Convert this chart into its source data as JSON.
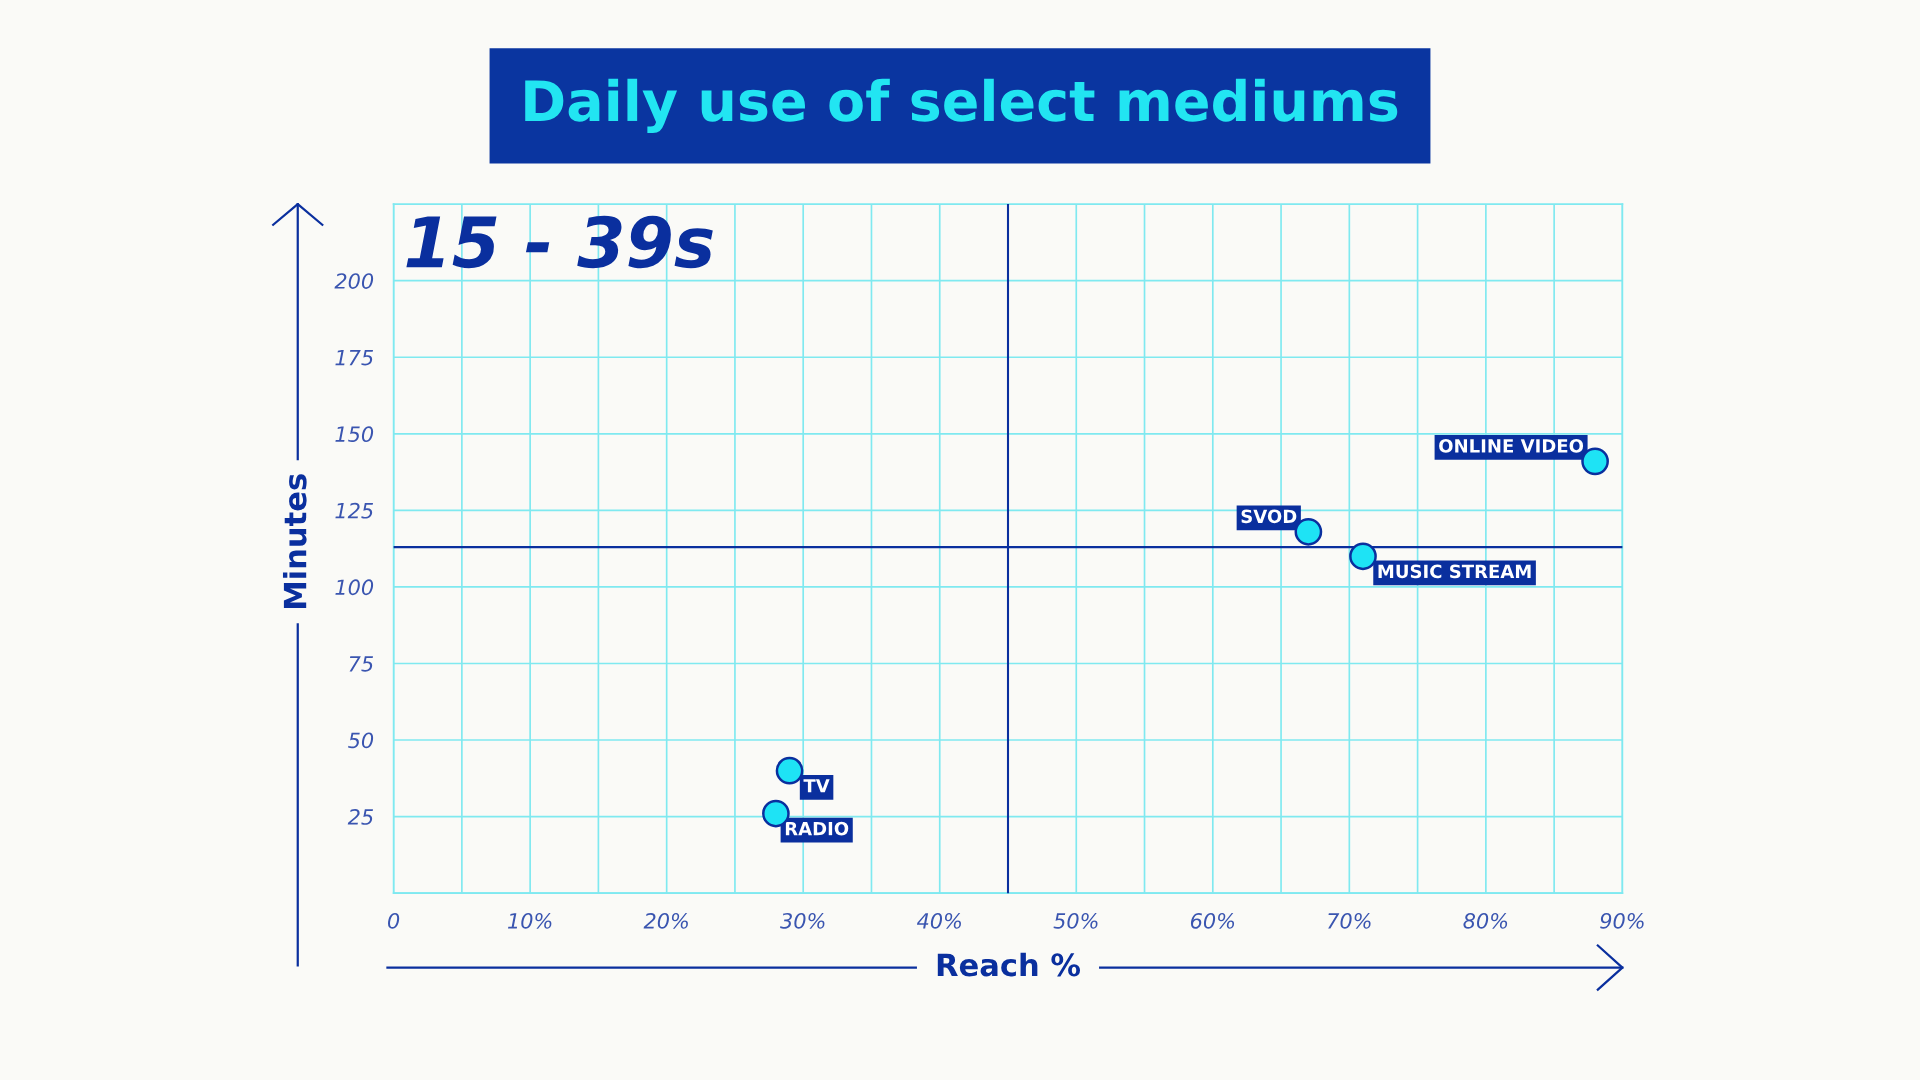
{
  "chart_data": {
    "type": "scatter",
    "title": "Daily use of select mediums",
    "xlabel": "Reach %",
    "ylabel": "Minutes",
    "annotations": [
      "15 - 39s"
    ],
    "series": [
      {
        "name": "ONLINE VIDEO",
        "color": "#1ee3f5",
        "x": [
          88
        ],
        "values": [
          141
        ]
      },
      {
        "name": "SVOD",
        "color": "#1ee3f5",
        "x": [
          67
        ],
        "values": [
          118
        ]
      },
      {
        "name": "MUSIC STREAM",
        "color": "#1ee3f5",
        "x": [
          71
        ],
        "values": [
          110
        ]
      },
      {
        "name": "TV",
        "color": "#1ee3f5",
        "x": [
          29
        ],
        "values": [
          40
        ]
      },
      {
        "name": "RADIO",
        "color": "#1ee3f5",
        "x": [
          28
        ],
        "values": [
          26
        ]
      }
    ],
    "xlim": [
      0,
      90
    ],
    "xticks": [
      {
        "value": 0,
        "label": "0"
      },
      {
        "value": 10,
        "label": "10%"
      },
      {
        "value": 20,
        "label": "20%"
      },
      {
        "value": 30,
        "label": "30%"
      },
      {
        "value": 40,
        "label": "40%"
      },
      {
        "value": 50,
        "label": "50%"
      },
      {
        "value": 60,
        "label": "60%"
      },
      {
        "value": 70,
        "label": "70%"
      },
      {
        "value": 80,
        "label": "80%"
      },
      {
        "value": 90,
        "label": "90%"
      }
    ],
    "ylim": [
      0,
      225
    ],
    "yticks": [
      25,
      50,
      75,
      100,
      125,
      150,
      175,
      200
    ],
    "ref_lines": [
      {
        "axis": "x",
        "value": 45,
        "color": "#0a2f9e"
      },
      {
        "axis": "y",
        "value": 113,
        "color": "#0a2f9e"
      }
    ],
    "grid": true,
    "marker": "circle"
  }
}
